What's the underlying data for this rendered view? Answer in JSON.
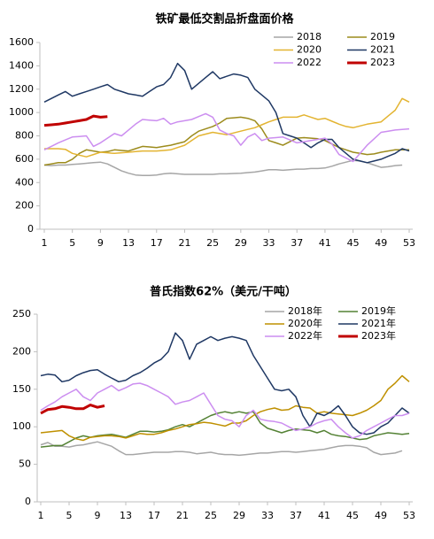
{
  "chart_data": [
    {
      "type": "line",
      "title": "铁矿最低交割品折盘面价格",
      "x": [
        1,
        2,
        3,
        4,
        5,
        6,
        7,
        8,
        9,
        10,
        11,
        12,
        13,
        14,
        15,
        16,
        17,
        18,
        19,
        20,
        21,
        22,
        23,
        24,
        25,
        26,
        27,
        28,
        29,
        30,
        31,
        32,
        33,
        34,
        35,
        36,
        37,
        38,
        39,
        40,
        41,
        42,
        43,
        44,
        45,
        46,
        47,
        48,
        49,
        50,
        51,
        52,
        53
      ],
      "xlim": [
        1,
        53
      ],
      "xticks": [
        1,
        5,
        9,
        13,
        17,
        21,
        25,
        29,
        33,
        37,
        41,
        45,
        49,
        53
      ],
      "ylim": [
        0,
        1600
      ],
      "yticks": [
        0,
        200,
        400,
        600,
        800,
        1000,
        1200,
        1400,
        1600
      ],
      "series": [
        {
          "name": "2018",
          "color": "#a6a6a6",
          "values": [
            550,
            545,
            550,
            550,
            555,
            560,
            565,
            570,
            575,
            560,
            530,
            500,
            480,
            465,
            460,
            460,
            465,
            475,
            480,
            475,
            470,
            470,
            470,
            470,
            470,
            475,
            475,
            478,
            480,
            485,
            490,
            500,
            510,
            510,
            505,
            510,
            515,
            515,
            520,
            520,
            525,
            540,
            560,
            575,
            590,
            585,
            570,
            550,
            530,
            535,
            545,
            550,
            null
          ]
        },
        {
          "name": "2019",
          "color": "#9c8b1c",
          "values": [
            550,
            560,
            570,
            570,
            600,
            650,
            680,
            670,
            660,
            665,
            680,
            675,
            670,
            690,
            710,
            705,
            700,
            710,
            720,
            735,
            750,
            800,
            840,
            860,
            880,
            910,
            950,
            955,
            960,
            950,
            930,
            860,
            760,
            740,
            720,
            750,
            780,
            785,
            780,
            775,
            760,
            730,
            700,
            680,
            660,
            650,
            640,
            645,
            660,
            670,
            680,
            680,
            680
          ]
        },
        {
          "name": "2020",
          "color": "#e3b431",
          "values": [
            690,
            690,
            690,
            685,
            650,
            635,
            620,
            640,
            660,
            655,
            650,
            655,
            660,
            665,
            670,
            670,
            670,
            675,
            680,
            700,
            720,
            760,
            800,
            815,
            830,
            820,
            810,
            825,
            840,
            855,
            870,
            895,
            920,
            940,
            960,
            960,
            960,
            980,
            960,
            940,
            950,
            925,
            900,
            880,
            870,
            885,
            900,
            910,
            920,
            970,
            1020,
            1120,
            1090
          ]
        },
        {
          "name": "2021",
          "color": "#1f3864",
          "values": [
            1090,
            1120,
            1150,
            1180,
            1140,
            1160,
            1180,
            1200,
            1220,
            1240,
            1200,
            1180,
            1160,
            1150,
            1140,
            1180,
            1220,
            1240,
            1300,
            1420,
            1360,
            1200,
            1250,
            1300,
            1350,
            1290,
            1310,
            1330,
            1320,
            1300,
            1200,
            1150,
            1100,
            1000,
            820,
            800,
            780,
            740,
            700,
            740,
            770,
            770,
            700,
            650,
            600,
            585,
            570,
            585,
            600,
            625,
            650,
            690,
            670
          ]
        },
        {
          "name": "2022",
          "color": "#cc8ef0",
          "values": [
            680,
            710,
            740,
            765,
            790,
            795,
            800,
            710,
            740,
            780,
            820,
            800,
            850,
            900,
            940,
            935,
            930,
            950,
            900,
            920,
            930,
            940,
            965,
            990,
            960,
            850,
            820,
            800,
            720,
            790,
            820,
            760,
            780,
            785,
            790,
            765,
            740,
            750,
            760,
            770,
            780,
            730,
            640,
            610,
            580,
            650,
            720,
            775,
            830,
            840,
            850,
            855,
            860
          ]
        },
        {
          "name": "2023",
          "color": "#c00000",
          "values": [
            890,
            895,
            900,
            910,
            920,
            930,
            940,
            970,
            960,
            965,
            null,
            null,
            null,
            null,
            null,
            null,
            null,
            null,
            null,
            null,
            null,
            null,
            null,
            null,
            null,
            null,
            null,
            null,
            null,
            null,
            null,
            null,
            null,
            null,
            null,
            null,
            null,
            null,
            null,
            null,
            null,
            null,
            null,
            null,
            null,
            null,
            null,
            null,
            null,
            null,
            null,
            null,
            null
          ]
        }
      ]
    },
    {
      "type": "line",
      "title": "普氏指数62%（美元/干吨）",
      "x": [
        1,
        2,
        3,
        4,
        5,
        6,
        7,
        8,
        9,
        10,
        11,
        12,
        13,
        14,
        15,
        16,
        17,
        18,
        19,
        20,
        21,
        22,
        23,
        24,
        25,
        26,
        27,
        28,
        29,
        30,
        31,
        32,
        33,
        34,
        35,
        36,
        37,
        38,
        39,
        40,
        41,
        42,
        43,
        44,
        45,
        46,
        47,
        48,
        49,
        50,
        51,
        52,
        53
      ],
      "xlim": [
        1,
        53
      ],
      "xticks": [
        1,
        5,
        9,
        13,
        17,
        21,
        25,
        29,
        33,
        37,
        41,
        45,
        49,
        53
      ],
      "ylim": [
        0,
        250
      ],
      "yticks": [
        0,
        50,
        100,
        150,
        200,
        250
      ],
      "series": [
        {
          "name": "2018年",
          "color": "#a6a6a6",
          "values": [
            76,
            79,
            74,
            74,
            73,
            75,
            76,
            78,
            80,
            77,
            74,
            68,
            63,
            63,
            64,
            65,
            66,
            66,
            66,
            67,
            67,
            66,
            64,
            65,
            66,
            64,
            63,
            63,
            62,
            63,
            64,
            65,
            65,
            66,
            67,
            67,
            66,
            67,
            68,
            69,
            70,
            72,
            74,
            75,
            75,
            74,
            72,
            66,
            63,
            64,
            65,
            68,
            null
          ]
        },
        {
          "name": "2019年",
          "color": "#548235",
          "values": [
            73,
            74,
            75,
            75,
            80,
            85,
            88,
            86,
            88,
            89,
            90,
            88,
            86,
            90,
            94,
            94,
            93,
            94,
            96,
            100,
            103,
            100,
            105,
            110,
            115,
            118,
            120,
            118,
            120,
            118,
            120,
            105,
            98,
            95,
            92,
            95,
            97,
            96,
            95,
            92,
            95,
            90,
            88,
            87,
            85,
            83,
            84,
            88,
            90,
            92,
            91,
            90,
            91
          ]
        },
        {
          "name": "2020年",
          "color": "#bf9000",
          "values": [
            92,
            93,
            94,
            95,
            88,
            84,
            82,
            86,
            87,
            88,
            88,
            87,
            85,
            88,
            91,
            90,
            90,
            92,
            95,
            97,
            100,
            103,
            104,
            106,
            105,
            103,
            101,
            105,
            105,
            108,
            115,
            120,
            123,
            125,
            122,
            123,
            128,
            126,
            125,
            118,
            120,
            118,
            117,
            116,
            115,
            118,
            122,
            128,
            135,
            150,
            158,
            168,
            160
          ]
        },
        {
          "name": "2021年",
          "color": "#1f3864",
          "values": [
            168,
            170,
            169,
            160,
            162,
            168,
            172,
            175,
            176,
            170,
            165,
            160,
            162,
            168,
            172,
            178,
            185,
            190,
            200,
            225,
            215,
            190,
            210,
            215,
            220,
            215,
            218,
            220,
            218,
            215,
            195,
            180,
            165,
            150,
            148,
            150,
            140,
            115,
            100,
            118,
            115,
            120,
            128,
            115,
            100,
            92,
            90,
            92,
            100,
            105,
            115,
            125,
            118
          ]
        },
        {
          "name": "2022年",
          "color": "#cc8ef0",
          "values": [
            122,
            128,
            133,
            140,
            145,
            150,
            140,
            135,
            145,
            150,
            155,
            148,
            152,
            157,
            158,
            155,
            150,
            145,
            140,
            130,
            133,
            135,
            140,
            145,
            130,
            115,
            110,
            108,
            100,
            115,
            122,
            110,
            108,
            107,
            105,
            100,
            95,
            97,
            100,
            105,
            108,
            110,
            100,
            92,
            85,
            88,
            95,
            100,
            105,
            110,
            115,
            115,
            118
          ]
        },
        {
          "name": "2023年",
          "color": "#c00000",
          "values": [
            118,
            123,
            124,
            127,
            126,
            124,
            124,
            129,
            126,
            128,
            null,
            null,
            null,
            null,
            null,
            null,
            null,
            null,
            null,
            null,
            null,
            null,
            null,
            null,
            null,
            null,
            null,
            null,
            null,
            null,
            null,
            null,
            null,
            null,
            null,
            null,
            null,
            null,
            null,
            null,
            null,
            null,
            null,
            null,
            null,
            null,
            null,
            null,
            null,
            null,
            null,
            null,
            null
          ]
        }
      ]
    }
  ]
}
